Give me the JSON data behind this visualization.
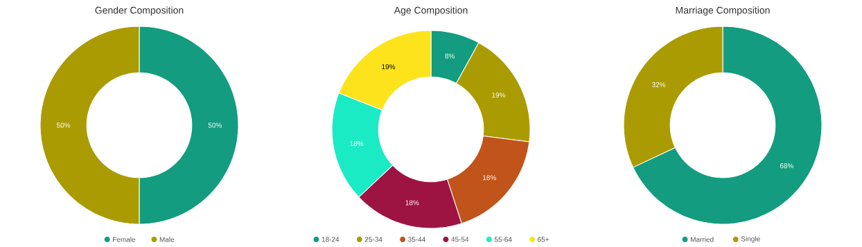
{
  "chart_data": [
    {
      "type": "donut",
      "title": "Gender Composition",
      "categories": [
        "Female",
        "Male"
      ],
      "values": [
        50,
        50
      ],
      "colors": [
        "#139c7f",
        "#ab9b03"
      ],
      "value_labels": [
        "50%",
        "50%"
      ],
      "legend": "bottom"
    },
    {
      "type": "donut",
      "title": "Age Composition",
      "categories": [
        "18-24",
        "25-34",
        "35-44",
        "45-54",
        "55-64",
        "65+"
      ],
      "values": [
        8,
        19,
        18,
        18,
        18,
        19
      ],
      "colors": [
        "#139c7f",
        "#ab9b03",
        "#c1541a",
        "#9d1442",
        "#1bebc5",
        "#fde31b"
      ],
      "value_labels": [
        "8%",
        "19%",
        "18%",
        "18%",
        "18%",
        "19%"
      ],
      "legend": "bottom"
    },
    {
      "type": "donut",
      "title": "Marriage Composition",
      "categories": [
        "Married",
        "Single"
      ],
      "values": [
        68,
        32
      ],
      "colors": [
        "#139c7f",
        "#ab9b03"
      ],
      "value_labels": [
        "68%",
        "32%"
      ],
      "legend": "bottom"
    }
  ]
}
